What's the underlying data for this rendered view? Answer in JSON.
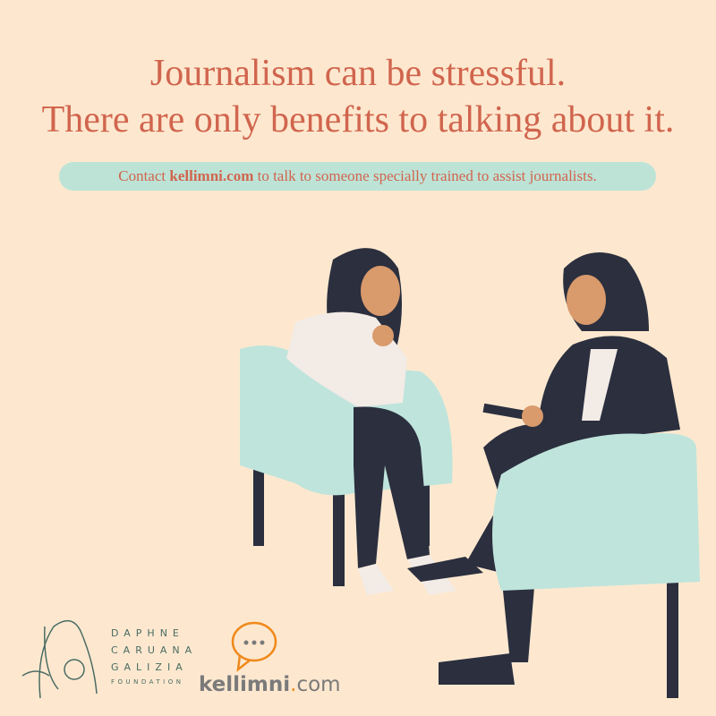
{
  "headline": {
    "line1": "Journalism can be stressful.",
    "line2": "There are only benefits to talking about it."
  },
  "contact": {
    "prefix": "Contact",
    "link": "kellimni.com",
    "suffix": "to talk to someone specially trained to assist journalists."
  },
  "logos": {
    "foundation": {
      "line1": "DAPHNE",
      "line2": "CARUANA",
      "line3": "GALIZIA",
      "line4": "FOUNDATION"
    },
    "kellimni": {
      "name": "kellimni",
      "dot": ".",
      "tld": "com",
      "icon": "speech-bubble-icon"
    }
  },
  "colors": {
    "background": "#fde8cf",
    "accent": "#d1654e",
    "pill": "#bde3d7",
    "chair": "#bfe4dc",
    "dark": "#2b2f3e",
    "kellimni_orange": "#f0891c"
  }
}
